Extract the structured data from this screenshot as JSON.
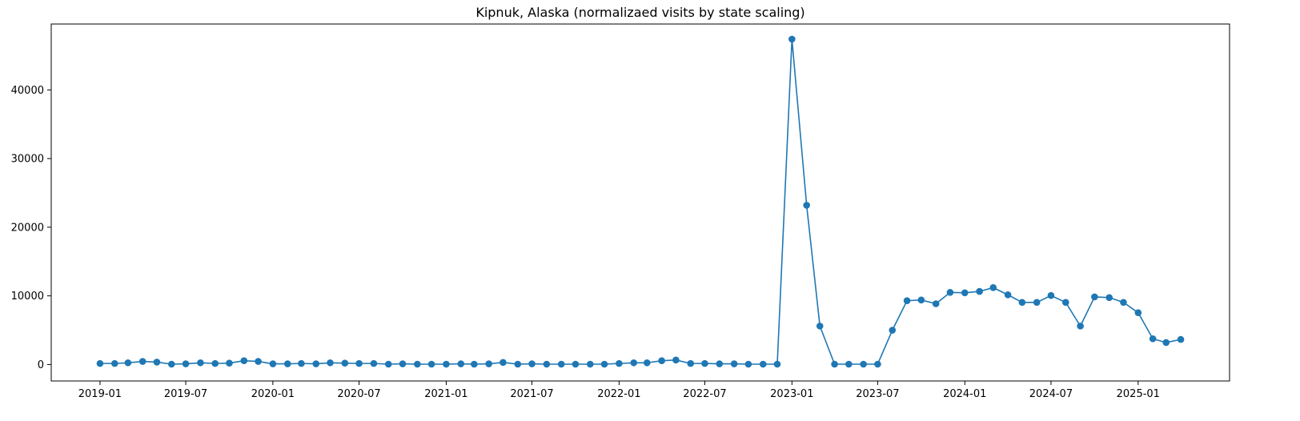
{
  "chart_data": {
    "type": "line",
    "title": "Kipnuk, Alaska (normalizaed visits by state scaling)",
    "xlabel": "",
    "ylabel": "",
    "x_ticks": [
      "2019-01",
      "2019-07",
      "2020-01",
      "2020-07",
      "2021-01",
      "2021-07",
      "2022-01",
      "2022-07",
      "2023-01",
      "2023-07",
      "2024-01",
      "2024-07",
      "2025-01"
    ],
    "y_ticks": [
      0,
      10000,
      20000,
      30000,
      40000
    ],
    "y_tick_labels": [
      "0",
      "10000",
      "20000",
      "30000",
      "40000"
    ],
    "ylim": [
      -2400,
      49600
    ],
    "xlim": [
      "2018-09-20",
      "2025-07-13"
    ],
    "grid": false,
    "legend": "none",
    "series": [
      {
        "color": "#1f77b4",
        "marker": "circle",
        "x": [
          "2019-01",
          "2019-02",
          "2019-03",
          "2019-04",
          "2019-05",
          "2019-06",
          "2019-07",
          "2019-08",
          "2019-09",
          "2019-10",
          "2019-11",
          "2019-12",
          "2020-01",
          "2020-02",
          "2020-03",
          "2020-04",
          "2020-05",
          "2020-06",
          "2020-07",
          "2020-08",
          "2020-09",
          "2020-10",
          "2020-11",
          "2020-12",
          "2021-01",
          "2021-02",
          "2021-03",
          "2021-04",
          "2021-05",
          "2021-06",
          "2021-07",
          "2021-08",
          "2021-09",
          "2021-10",
          "2021-11",
          "2021-12",
          "2022-01",
          "2022-02",
          "2022-03",
          "2022-04",
          "2022-05",
          "2022-06",
          "2022-07",
          "2022-08",
          "2022-09",
          "2022-10",
          "2022-11",
          "2022-12",
          "2023-01",
          "2023-02",
          "2023-03",
          "2023-04",
          "2023-05",
          "2023-06",
          "2023-07",
          "2023-08",
          "2023-09",
          "2023-10",
          "2023-11",
          "2023-12",
          "2024-01",
          "2024-02",
          "2024-03",
          "2024-04",
          "2024-05",
          "2024-06",
          "2024-07",
          "2024-08",
          "2024-09",
          "2024-10",
          "2024-11",
          "2024-12",
          "2025-01",
          "2025-02",
          "2025-03",
          "2025-04"
        ],
        "values": [
          150,
          150,
          250,
          450,
          350,
          50,
          100,
          250,
          150,
          200,
          550,
          450,
          100,
          100,
          150,
          100,
          250,
          200,
          150,
          150,
          50,
          100,
          50,
          50,
          50,
          100,
          50,
          100,
          300,
          50,
          100,
          50,
          50,
          50,
          50,
          50,
          150,
          250,
          250,
          550,
          650,
          150,
          150,
          100,
          100,
          50,
          50,
          50,
          47400,
          23200,
          5600,
          50,
          50,
          50,
          50,
          5000,
          9300,
          9400,
          8850,
          10500,
          10450,
          10650,
          11200,
          10150,
          9050,
          9050,
          10050,
          9050,
          5600,
          9850,
          9750,
          9050,
          7550,
          3750,
          3200,
          3650
        ]
      }
    ]
  }
}
